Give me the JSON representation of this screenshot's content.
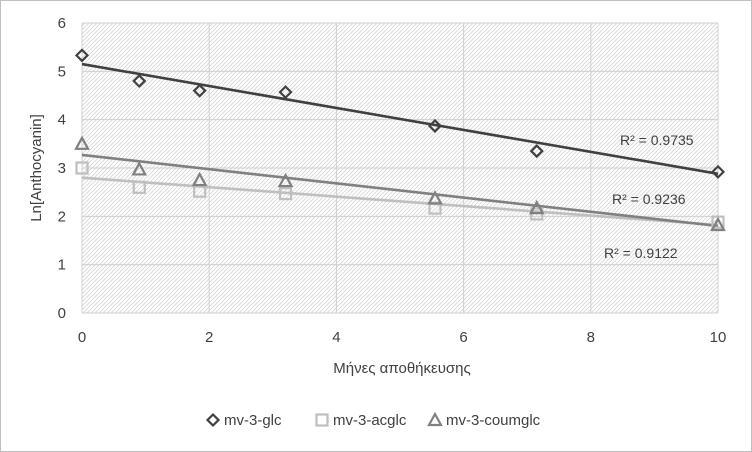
{
  "chart_data": {
    "type": "scatter",
    "title": "",
    "xlabel": "Μήνες αποθήκευσης",
    "ylabel": "Ln[Anthocyanin]",
    "xlim": [
      0,
      10
    ],
    "ylim": [
      0,
      6
    ],
    "xticks": [
      0,
      2,
      4,
      6,
      8,
      10
    ],
    "yticks": [
      0,
      1,
      2,
      3,
      4,
      5,
      6
    ],
    "grid": true,
    "legend_position": "bottom",
    "series": [
      {
        "name": "mv-3-glc",
        "marker": "diamond",
        "color": "#404040",
        "x": [
          0,
          0.9,
          1.85,
          3.2,
          5.55,
          7.15,
          10
        ],
        "y": [
          5.33,
          4.8,
          4.6,
          4.57,
          3.87,
          3.35,
          2.92
        ],
        "trendline": {
          "type": "linear",
          "start": [
            0,
            5.15
          ],
          "end": [
            10,
            2.88
          ],
          "r2_label": "R² = 0.9735"
        }
      },
      {
        "name": "mv-3-acglc",
        "marker": "square",
        "color": "#bfbfbf",
        "x": [
          0,
          0.9,
          1.85,
          3.2,
          5.55,
          7.15,
          10
        ],
        "y": [
          3.0,
          2.6,
          2.52,
          2.47,
          2.17,
          2.05,
          1.88
        ],
        "trendline": {
          "type": "linear",
          "start": [
            0,
            2.8
          ],
          "end": [
            10,
            1.82
          ],
          "r2_label": "R² = 0.9122"
        }
      },
      {
        "name": "mv-3-coumglc",
        "marker": "triangle",
        "color": "#808080",
        "x": [
          0,
          0.9,
          1.85,
          3.2,
          5.55,
          7.15,
          10
        ],
        "y": [
          3.5,
          2.97,
          2.75,
          2.73,
          2.37,
          2.17,
          1.82
        ],
        "trendline": {
          "type": "linear",
          "start": [
            0,
            3.27
          ],
          "end": [
            10,
            1.8
          ],
          "r2_label": "R² = 0.9236"
        }
      }
    ]
  }
}
